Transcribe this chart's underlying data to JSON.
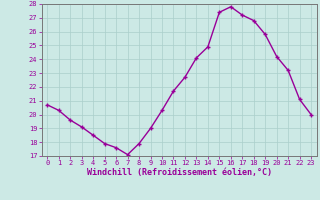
{
  "hours": [
    0,
    1,
    2,
    3,
    4,
    5,
    6,
    7,
    8,
    9,
    10,
    11,
    12,
    13,
    14,
    15,
    16,
    17,
    18,
    19,
    20,
    21,
    22,
    23
  ],
  "values": [
    20.7,
    20.3,
    19.6,
    19.1,
    18.5,
    17.9,
    17.6,
    17.1,
    17.9,
    19.0,
    20.3,
    21.7,
    22.7,
    24.1,
    24.9,
    27.4,
    27.8,
    27.2,
    26.8,
    25.8,
    24.2,
    23.2,
    21.1,
    20.0
  ],
  "line_color": "#990099",
  "marker": "+",
  "marker_size": 3.5,
  "bg_color": "#cce9e5",
  "grid_color": "#aacfcb",
  "tick_label_color": "#990099",
  "xlabel": "Windchill (Refroidissement éolien,°C)",
  "xlabel_color": "#990099",
  "ylim": [
    17,
    28
  ],
  "yticks": [
    17,
    18,
    19,
    20,
    21,
    22,
    23,
    24,
    25,
    26,
    27,
    28
  ],
  "xticks": [
    0,
    1,
    2,
    3,
    4,
    5,
    6,
    7,
    8,
    9,
    10,
    11,
    12,
    13,
    14,
    15,
    16,
    17,
    18,
    19,
    20,
    21,
    22,
    23
  ],
  "spine_color": "#777777",
  "linewidth": 1.0,
  "tick_fontsize": 5.0,
  "xlabel_fontsize": 6.0
}
